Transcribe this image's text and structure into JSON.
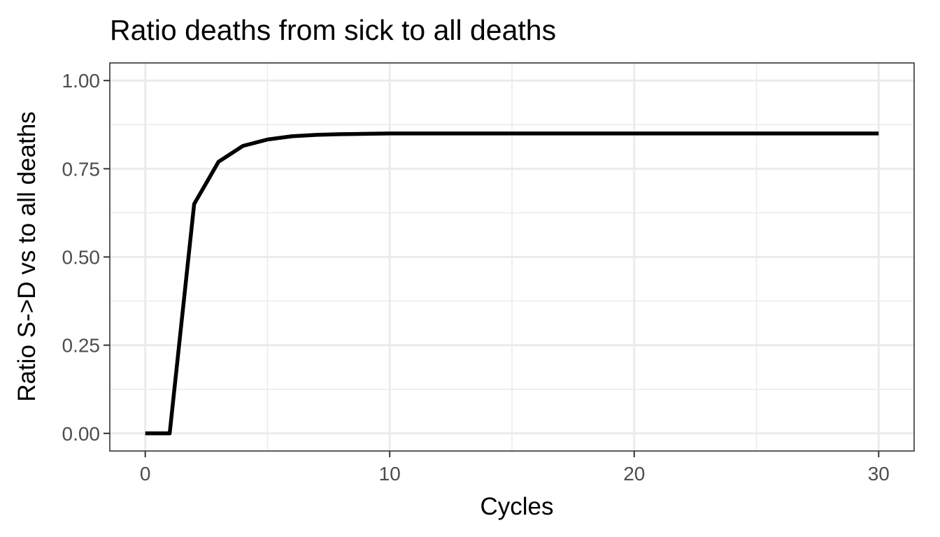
{
  "chart_data": {
    "type": "line",
    "title": "Ratio deaths from sick to all deaths",
    "xlabel": "Cycles",
    "ylabel": "Ratio S->D vs to all deaths",
    "xlim": [
      -1.45,
      31.45
    ],
    "ylim": [
      -0.05,
      1.05
    ],
    "x_ticks": [
      0,
      10,
      20,
      30
    ],
    "y_ticks": [
      0.0,
      0.25,
      0.5,
      0.75,
      1.0
    ],
    "x_tick_labels": [
      "0",
      "10",
      "20",
      "30"
    ],
    "y_tick_labels": [
      "0.00",
      "0.25",
      "0.50",
      "0.75",
      "1.00"
    ],
    "grid": true,
    "line_color": "#000000",
    "series": [
      {
        "x": [
          0,
          1,
          2,
          3,
          4,
          5,
          6,
          7,
          8,
          9,
          10,
          11,
          12,
          13,
          14,
          15,
          16,
          17,
          18,
          19,
          20,
          21,
          22,
          23,
          24,
          25,
          26,
          27,
          28,
          29,
          30
        ],
        "values": [
          0.0,
          0.0,
          0.65,
          0.77,
          0.815,
          0.833,
          0.842,
          0.846,
          0.848,
          0.849,
          0.85,
          0.85,
          0.85,
          0.85,
          0.85,
          0.85,
          0.85,
          0.85,
          0.85,
          0.85,
          0.85,
          0.85,
          0.85,
          0.85,
          0.85,
          0.85,
          0.85,
          0.85,
          0.85,
          0.85,
          0.85
        ]
      }
    ]
  }
}
